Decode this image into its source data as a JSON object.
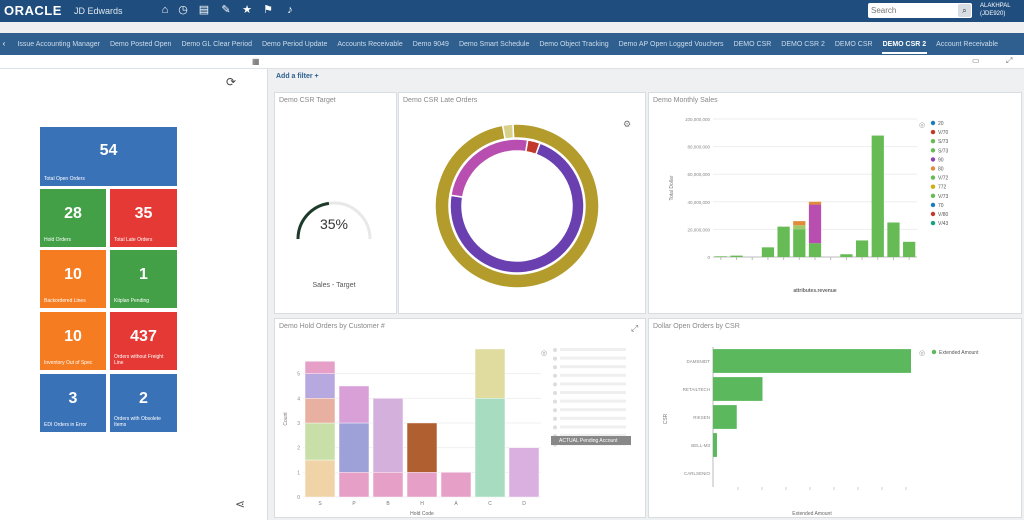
{
  "topbar": {
    "logo": "ORACLE",
    "product": "JD Edwards",
    "icons": [
      "home-icon",
      "clock-icon",
      "list-icon",
      "edit-icon",
      "star-icon",
      "flag-icon",
      "bell-icon"
    ],
    "search_placeholder": "Search",
    "user_line1": "ALAKHPAL",
    "user_line2": "(JDE920)"
  },
  "tabs": [
    {
      "label": "Issue Accounting Manager"
    },
    {
      "label": "Demo Posted Open"
    },
    {
      "label": "Demo GL Clear Period"
    },
    {
      "label": "Demo Period Update"
    },
    {
      "label": "Accounts Receivable"
    },
    {
      "label": "Demo 9049"
    },
    {
      "label": "Demo Smart Schedule"
    },
    {
      "label": "Demo Object Tracking"
    },
    {
      "label": "Demo AP Open Logged Vouchers"
    },
    {
      "label": "DEMO CSR"
    },
    {
      "label": "DEMO CSR 2"
    },
    {
      "label": "DEMO CSR"
    },
    {
      "label": "DEMO CSR 2",
      "active": true
    },
    {
      "label": "Account Receivable"
    }
  ],
  "add_filter": "Add a filter +",
  "tiles": [
    {
      "value": "54",
      "label": "Total Open Orders",
      "color": "#3a72b8"
    },
    {
      "value": "28",
      "label": "Hold Orders",
      "color": "#43a047"
    },
    {
      "value": "35",
      "label": "Total Late Orders",
      "color": "#e53935"
    },
    {
      "value": "10",
      "label": "Backordered Lines",
      "color": "#f57c20"
    },
    {
      "value": "1",
      "label": "Kitplan Pending",
      "color": "#43a047"
    },
    {
      "value": "10",
      "label": "Inventory Out of Spec",
      "color": "#f57c20"
    },
    {
      "value": "437",
      "label": "Orders without Freight Line",
      "color": "#e53935"
    },
    {
      "value": "3",
      "label": "EDI Orders in Error",
      "color": "#3a72b8"
    },
    {
      "value": "2",
      "label": "Orders with Obsolete Items",
      "color": "#3a72b8"
    }
  ],
  "panels": {
    "gauge_title": "Demo CSR Target",
    "donut_title": "Demo CSR Late Orders",
    "monthly_title": "Demo Monthly Sales",
    "hold_title": "Demo Hold Orders by Customer #",
    "open_title": "Dollar Open Orders by CSR"
  },
  "chart_data": [
    {
      "type": "gauge",
      "title": "Demo CSR Target",
      "value_label": "35%",
      "value": 35,
      "caption": "Sales - Target"
    },
    {
      "type": "pie",
      "title": "Demo CSR Late Orders",
      "rings": [
        {
          "name": "inner",
          "slices": [
            {
              "value": 72,
              "color": "#6a3fb0"
            },
            {
              "value": 25,
              "color": "#b84fb0"
            },
            {
              "value": 3,
              "color": "#c0392b"
            }
          ]
        },
        {
          "name": "outer",
          "slices": [
            {
              "value": 98,
              "color": "#b39b2c"
            },
            {
              "value": 2,
              "color": "#d9d08a"
            }
          ]
        }
      ]
    },
    {
      "type": "bar",
      "title": "Demo Monthly Sales",
      "xlabel": "attributes.revenue",
      "ylabel": "Total Dollar",
      "yticks": [
        "100,000,000",
        "80,000,000",
        "60,000,000",
        "40,000,000",
        "20,000,000",
        "0"
      ],
      "ylim": [
        0,
        100000000
      ],
      "series": [
        {
          "color": "#66bb55",
          "values": [
            500000,
            1000000,
            0,
            7000000,
            22000000,
            20000000,
            10000000,
            0,
            2000000,
            12000000,
            88000000,
            25000000,
            11000000
          ]
        },
        {
          "color": "#9fc96b",
          "values": [
            0,
            0,
            0,
            0,
            0,
            3000000,
            0,
            0,
            0,
            0,
            0,
            0,
            0
          ]
        },
        {
          "color": "#b84fb0",
          "values": [
            0,
            0,
            0,
            0,
            0,
            0,
            28000000,
            0,
            0,
            0,
            0,
            0,
            0
          ]
        },
        {
          "color": "#e08a3a",
          "values": [
            0,
            0,
            0,
            0,
            0,
            3000000,
            2000000,
            0,
            0,
            0,
            0,
            0,
            0
          ]
        }
      ],
      "legend": [
        "20",
        "V/70",
        "S/73",
        "S/73",
        "90",
        "80",
        "V/72",
        "772",
        "V/73",
        "70",
        "V/80",
        "V/43"
      ],
      "legend_colors": [
        "#1a7bbf",
        "#c0392b",
        "#66bb55",
        "#66bb55",
        "#8e44ad",
        "#e08a3a",
        "#66bb55",
        "#d4ac0d",
        "#66bb55",
        "#1a7bbf",
        "#c0392b",
        "#16a085"
      ]
    },
    {
      "type": "bar",
      "title": "Demo Hold Orders by Customer #",
      "xlabel": "Hold Code",
      "ylabel": "Count",
      "categories": [
        "S",
        "P",
        "B",
        "H",
        "A",
        "C",
        "D"
      ],
      "ylim": [
        0,
        6
      ],
      "stacks": [
        [
          {
            "value": 1.5,
            "color": "#f0d4a8"
          },
          {
            "value": 1.5,
            "color": "#c8dfa8"
          },
          {
            "value": 1.0,
            "color": "#e8b0a0"
          },
          {
            "value": 1.0,
            "color": "#b8a8e0"
          },
          {
            "value": 0.5,
            "color": "#e6a0c8"
          }
        ],
        [
          {
            "value": 1.0,
            "color": "#e6a0c8"
          },
          {
            "value": 2.0,
            "color": "#9ea0d8"
          },
          {
            "value": 1.5,
            "color": "#d9a0d8"
          }
        ],
        [
          {
            "value": 1.0,
            "color": "#e6a0c8"
          },
          {
            "value": 3.0,
            "color": "#d4b0dc"
          }
        ],
        [
          {
            "value": 1.0,
            "color": "#e6a0c8"
          },
          {
            "value": 2.0,
            "color": "#b06030"
          }
        ],
        [
          {
            "value": 1.0,
            "color": "#e6a0c8"
          }
        ],
        [
          {
            "value": 4.0,
            "color": "#a8dcc0"
          },
          {
            "value": 2.0,
            "color": "#e0dca0"
          }
        ],
        [
          {
            "value": 2.0,
            "color": "#d9b0e0"
          }
        ]
      ],
      "legend_selected": "ACTUAL Pending Account"
    },
    {
      "type": "bar",
      "title": "Dollar Open Orders by CSR",
      "xlabel": "Extended Amount",
      "ylabel": "CSR",
      "orientation": "horizontal",
      "categories": [
        "DAMSNIDT",
        "RETAILTECH",
        "RIKSEN",
        "BELL-M3",
        "CARLSENIO"
      ],
      "values": [
        100,
        25,
        12,
        2,
        0
      ],
      "legend": [
        "Extended Amount"
      ],
      "color": "#5cb85c"
    }
  ]
}
